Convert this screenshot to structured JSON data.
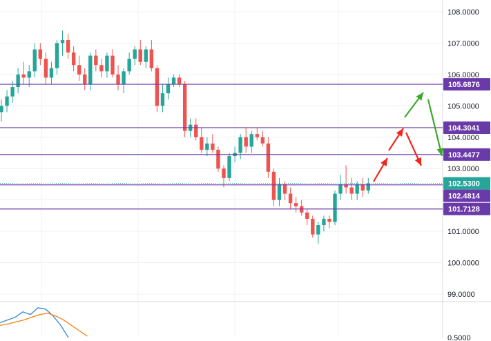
{
  "chart_data": {
    "type": "candlestick",
    "ylim": [
      98.75,
      108.35
    ],
    "y_ticks": [
      "108.0000",
      "107.0000",
      "106.0000",
      "105.0000",
      "104.0000",
      "103.0000",
      "101.0000",
      "100.0000",
      "99.0000"
    ],
    "y_tick_values": [
      108,
      107,
      106,
      105,
      104,
      103,
      101,
      100,
      99
    ],
    "indicator_tick_label": "0.5000",
    "current_price": {
      "value": 102.53,
      "label": "102.5300",
      "color": "#26a69a"
    },
    "levels": [
      {
        "value": 105.6876,
        "label": "105.6876"
      },
      {
        "value": 104.3041,
        "label": "104.3041"
      },
      {
        "value": 103.4477,
        "label": "103.4477"
      },
      {
        "value": 102.4814,
        "label": "102.4814"
      },
      {
        "value": 101.7128,
        "label": "101.7128"
      }
    ],
    "level_color": "#6a3aa8",
    "up_color": "#26a69a",
    "down_color": "#ef5350",
    "arrow_colors": {
      "red": "#f0261b",
      "green": "#3aa829"
    },
    "candles": [
      [
        104.8,
        105.2,
        104.5,
        105.0
      ],
      [
        105.0,
        105.5,
        104.8,
        105.3
      ],
      [
        105.3,
        105.8,
        105.1,
        105.6
      ],
      [
        105.6,
        106.2,
        105.4,
        106.0
      ],
      [
        106.0,
        106.4,
        105.7,
        105.9
      ],
      [
        105.9,
        106.3,
        105.6,
        106.1
      ],
      [
        106.1,
        107.0,
        105.9,
        106.8
      ],
      [
        106.8,
        107.0,
        106.3,
        106.5
      ],
      [
        106.5,
        106.7,
        105.7,
        105.9
      ],
      [
        105.9,
        106.4,
        105.7,
        106.2
      ],
      [
        106.2,
        107.1,
        106.0,
        107.0
      ],
      [
        107.0,
        107.4,
        106.6,
        107.1
      ],
      [
        107.1,
        107.3,
        106.5,
        106.7
      ],
      [
        106.7,
        106.9,
        106.1,
        106.3
      ],
      [
        106.3,
        106.6,
        105.8,
        106.0
      ],
      [
        106.0,
        106.2,
        105.5,
        105.7
      ],
      [
        105.7,
        106.7,
        105.5,
        106.6
      ],
      [
        106.6,
        106.8,
        106.1,
        106.3
      ],
      [
        106.3,
        106.5,
        105.9,
        106.1
      ],
      [
        106.1,
        106.7,
        105.9,
        106.6
      ],
      [
        106.6,
        106.8,
        105.9,
        106.0
      ],
      [
        106.0,
        106.3,
        105.5,
        105.7
      ],
      [
        105.7,
        106.2,
        105.4,
        106.1
      ],
      [
        106.1,
        106.7,
        106.0,
        106.5
      ],
      [
        106.5,
        106.9,
        106.3,
        106.8
      ],
      [
        106.8,
        107.1,
        106.3,
        106.4
      ],
      [
        106.4,
        106.9,
        106.2,
        106.8
      ],
      [
        106.8,
        107.1,
        106.1,
        106.2
      ],
      [
        106.2,
        106.3,
        104.8,
        105.0
      ],
      [
        105.0,
        105.7,
        104.8,
        105.4
      ],
      [
        105.4,
        105.9,
        105.2,
        105.7
      ],
      [
        105.7,
        106.0,
        105.6,
        105.9
      ],
      [
        105.9,
        106.0,
        105.6,
        105.7
      ],
      [
        105.7,
        105.8,
        104.0,
        104.2
      ],
      [
        104.2,
        104.6,
        104.0,
        104.4
      ],
      [
        104.4,
        104.6,
        103.9,
        104.0
      ],
      [
        104.0,
        104.3,
        103.5,
        103.6
      ],
      [
        103.6,
        104.0,
        103.4,
        103.8
      ],
      [
        103.8,
        104.1,
        103.5,
        103.6
      ],
      [
        103.6,
        103.7,
        102.9,
        103.0
      ],
      [
        103.0,
        103.1,
        102.4,
        102.7
      ],
      [
        102.7,
        103.5,
        102.6,
        103.4
      ],
      [
        103.4,
        103.7,
        103.2,
        103.5
      ],
      [
        103.5,
        104.1,
        103.3,
        104.0
      ],
      [
        104.0,
        104.3,
        103.5,
        103.7
      ],
      [
        103.7,
        104.2,
        103.5,
        104.1
      ],
      [
        104.1,
        104.3,
        103.9,
        104.0
      ],
      [
        104.0,
        104.2,
        103.7,
        103.8
      ],
      [
        103.8,
        104.0,
        102.7,
        102.9
      ],
      [
        102.9,
        103.0,
        101.8,
        102.0
      ],
      [
        102.0,
        102.7,
        101.8,
        102.5
      ],
      [
        102.5,
        102.6,
        102.0,
        102.2
      ],
      [
        102.2,
        102.4,
        101.7,
        101.9
      ],
      [
        101.9,
        102.1,
        101.6,
        101.8
      ],
      [
        101.8,
        102.0,
        101.5,
        101.6
      ],
      [
        101.6,
        101.7,
        101.2,
        101.4
      ],
      [
        101.4,
        101.5,
        100.8,
        100.9
      ],
      [
        100.9,
        101.3,
        100.6,
        101.2
      ],
      [
        101.2,
        101.5,
        101.0,
        101.4
      ],
      [
        101.4,
        101.5,
        101.1,
        101.3
      ],
      [
        101.3,
        102.3,
        101.2,
        102.2
      ],
      [
        102.2,
        102.8,
        102.0,
        102.5
      ],
      [
        102.5,
        103.1,
        102.2,
        102.4
      ],
      [
        102.4,
        102.7,
        102.0,
        102.2
      ],
      [
        102.2,
        102.6,
        102.0,
        102.5
      ],
      [
        102.5,
        102.7,
        102.1,
        102.3
      ],
      [
        102.3,
        102.7,
        102.2,
        102.53
      ]
    ],
    "indicator": {
      "blue": [
        0.52,
        0.56,
        0.6,
        0.68,
        0.64,
        0.74,
        0.72,
        0.62,
        0.48,
        0.3
      ],
      "orange": [
        0.48,
        0.5,
        0.53,
        0.56,
        0.6,
        0.64,
        0.66,
        0.62,
        0.56,
        0.48,
        0.4,
        0.32
      ],
      "colors": {
        "blue": "#3a8fd8",
        "orange": "#f08a24"
      }
    }
  }
}
